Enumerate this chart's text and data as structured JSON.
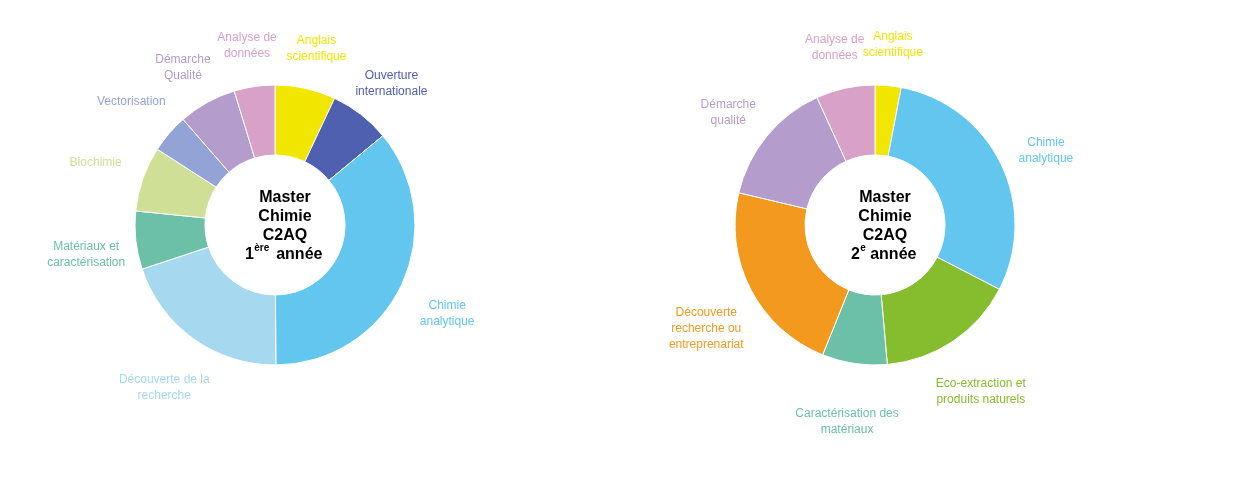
{
  "chart_data": [
    {
      "type": "donut",
      "title": "Master\nChimie\nC2AQ\n1$^{ère}$ année",
      "legend": false,
      "categories": [
        "Anglais\nscientifique",
        "Ouverture\ninternationale",
        "Chimie\nanalytique",
        "Découverte de la\nrecherche",
        "Matériaux et\ncaractérisation",
        "Biochimie",
        "Vectorisation",
        "Démarche\nQualité",
        "Analyse de\ndonnées"
      ],
      "values": [
        7,
        7,
        35.9,
        20,
        6.7,
        7.5,
        4.5,
        6.7,
        4.7
      ],
      "colors": [
        "#f0e600",
        "#4f60b0",
        "#63c6ee",
        "#a6d8f0",
        "#6cc0a8",
        "#cfe096",
        "#94a3d6",
        "#b49ccc",
        "#d8a2c8"
      ]
    },
    {
      "type": "donut",
      "title": "Master\nChimie\nC2AQ\n2$^{e}$ année",
      "legend": false,
      "categories": [
        "Anglais\nscientifique",
        "Chimie\nanalytique",
        "Eco-extraction et\nproduits naturels",
        "Caractérisation des\nmatériaux",
        "Découverte\nrecherche ou\nentreprenariat",
        "Démarche\nqualité",
        "Analyse de\ndonnées"
      ],
      "values": [
        3,
        29.6,
        16,
        7.5,
        22.6,
        14.5,
        6.8
      ],
      "colors": [
        "#f0e600",
        "#63c6ee",
        "#86bd2e",
        "#6cc0a8",
        "#f39a1e",
        "#b49ccc",
        "#d8a2c8"
      ]
    }
  ]
}
